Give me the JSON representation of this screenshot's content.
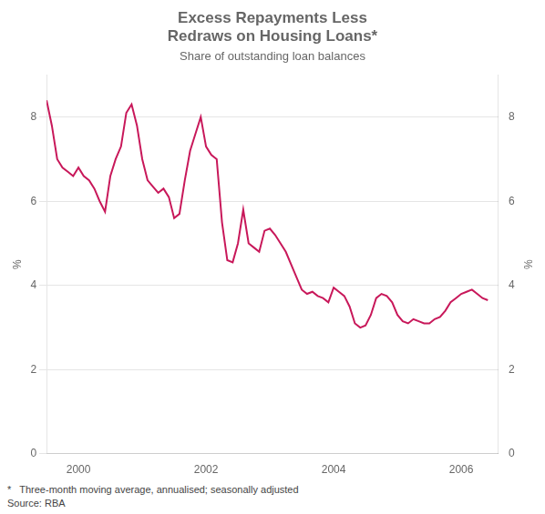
{
  "chart_data": {
    "type": "line",
    "title": "Excess Repayments Less\nRedraws on Housing Loans*",
    "subtitle": "Share of outstanding loan balances",
    "ylabel": "%",
    "y2label": "%",
    "footnote": "*   Three-month moving average, annualised; seasonally adjusted\nSource: RBA",
    "color": "#C8185A",
    "grid": "y",
    "ylim": [
      0,
      9
    ],
    "yticks": [
      0,
      2,
      4,
      6,
      8
    ],
    "y2lim": [
      0,
      9
    ],
    "y2ticks": [
      0,
      2,
      4,
      6,
      8
    ],
    "xlim": [
      1999.5,
      2006.583
    ],
    "xticks": [
      2000,
      2002,
      2004,
      2006
    ],
    "x": [
      1999.5,
      1999.583,
      1999.667,
      1999.75,
      1999.833,
      1999.917,
      2000.0,
      2000.083,
      2000.167,
      2000.25,
      2000.333,
      2000.417,
      2000.5,
      2000.583,
      2000.667,
      2000.75,
      2000.833,
      2000.917,
      2001.0,
      2001.083,
      2001.167,
      2001.25,
      2001.333,
      2001.417,
      2001.5,
      2001.583,
      2001.667,
      2001.75,
      2001.833,
      2001.917,
      2002.0,
      2002.083,
      2002.167,
      2002.25,
      2002.333,
      2002.417,
      2002.5,
      2002.583,
      2002.667,
      2002.75,
      2002.833,
      2002.917,
      2003.0,
      2003.083,
      2003.167,
      2003.25,
      2003.333,
      2003.417,
      2003.5,
      2003.583,
      2003.667,
      2003.75,
      2003.833,
      2003.917,
      2004.0,
      2004.083,
      2004.167,
      2004.25,
      2004.333,
      2004.417,
      2004.5,
      2004.583,
      2004.667,
      2004.75,
      2004.833,
      2004.917,
      2005.0,
      2005.083,
      2005.167,
      2005.25,
      2005.333,
      2005.417,
      2005.5,
      2005.583,
      2005.667,
      2005.75,
      2005.833,
      2005.917,
      2006.0,
      2006.083,
      2006.167,
      2006.25,
      2006.333,
      2006.417
    ],
    "values": [
      8.4,
      7.8,
      7.0,
      6.8,
      6.7,
      6.6,
      6.8,
      6.6,
      6.5,
      6.3,
      6.0,
      5.75,
      6.6,
      7.0,
      7.3,
      8.1,
      8.3,
      7.8,
      7.0,
      6.5,
      6.35,
      6.2,
      6.3,
      6.1,
      5.6,
      5.7,
      6.5,
      7.2,
      7.6,
      8.0,
      7.3,
      7.1,
      7.0,
      5.5,
      4.6,
      4.55,
      5.0,
      5.8,
      5.0,
      4.9,
      4.8,
      5.3,
      5.35,
      5.2,
      5.0,
      4.8,
      4.5,
      4.2,
      3.9,
      3.8,
      3.85,
      3.75,
      3.7,
      3.6,
      3.95,
      3.85,
      3.75,
      3.5,
      3.1,
      3.0,
      3.05,
      3.3,
      3.7,
      3.8,
      3.75,
      3.6,
      3.3,
      3.15,
      3.1,
      3.2,
      3.15,
      3.1,
      3.1,
      3.2,
      3.25,
      3.4,
      3.6,
      3.7,
      3.8,
      3.85,
      3.9,
      3.8,
      3.7,
      3.65
    ]
  }
}
